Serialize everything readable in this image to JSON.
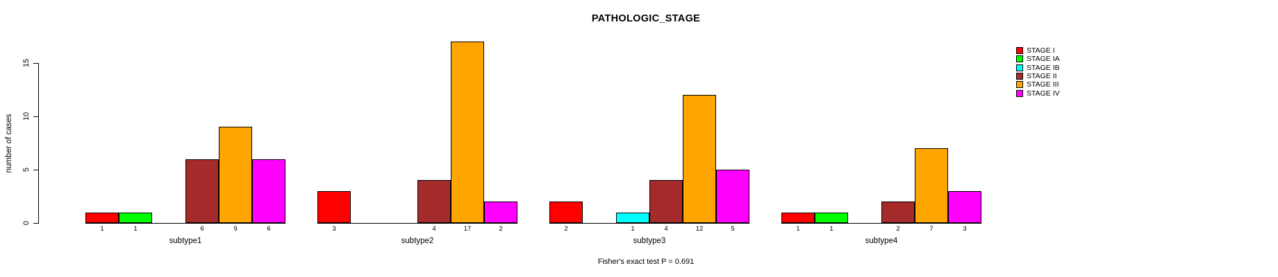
{
  "chart_data": {
    "type": "bar",
    "layout_hint": "grouped-bars-beside",
    "title": "PATHOLOGIC_STAGE",
    "ylabel": "number of cases",
    "xlabel": "",
    "annotation": "Fisher's exact test P = 0.691",
    "categories": [
      "subtype1",
      "subtype2",
      "subtype3",
      "subtype4"
    ],
    "series": [
      {
        "name": "STAGE I",
        "color": "#FF0000",
        "values": [
          1,
          3,
          2,
          1
        ]
      },
      {
        "name": "STAGE IA",
        "color": "#00FF00",
        "values": [
          1,
          0,
          0,
          1
        ]
      },
      {
        "name": "STAGE IB",
        "color": "#00FFFF",
        "values": [
          0,
          0,
          1,
          0
        ]
      },
      {
        "name": "STAGE II",
        "color": "#A52A2A",
        "values": [
          6,
          4,
          4,
          2
        ]
      },
      {
        "name": "STAGE III",
        "color": "#FFA500",
        "values": [
          9,
          17,
          12,
          7
        ]
      },
      {
        "name": "STAGE IV",
        "color": "#FF00FF",
        "values": [
          6,
          2,
          5,
          3
        ]
      }
    ],
    "bar_value_labels_shown": true,
    "yticks": [
      0,
      5,
      10,
      15
    ],
    "ylim": [
      0,
      17
    ],
    "grid": false,
    "legend_position": "right",
    "legend_entries": [
      "STAGE I",
      "STAGE IA",
      "STAGE IB",
      "STAGE II",
      "STAGE III",
      "STAGE IV"
    ],
    "axis_color": "#000000",
    "bar_border_color": "#000000",
    "background_color": "#FFFFFF"
  }
}
